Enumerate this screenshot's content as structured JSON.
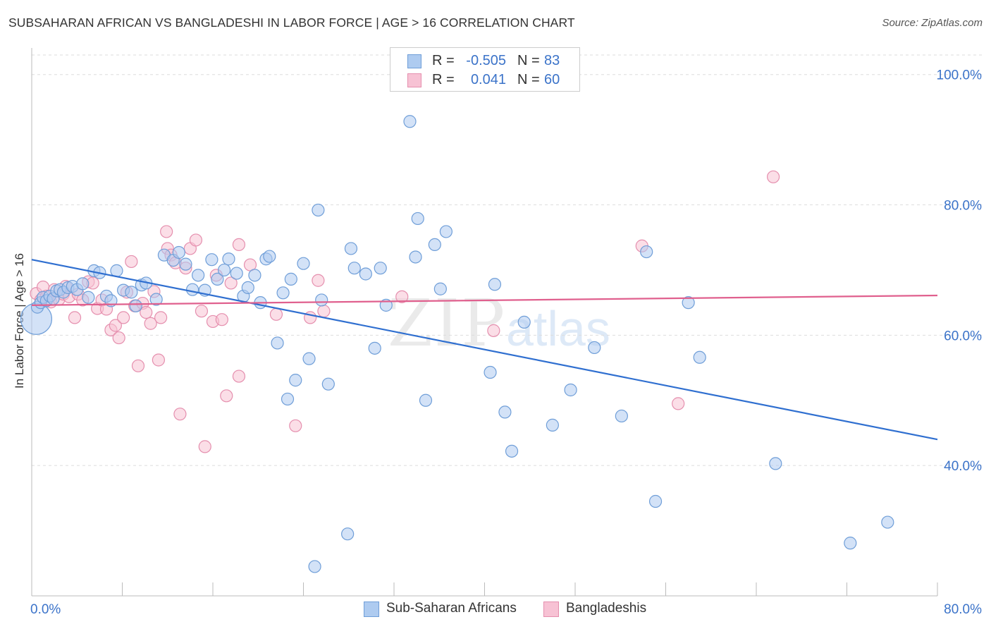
{
  "title": "SUBSAHARAN AFRICAN VS BANGLADESHI IN LABOR FORCE | AGE > 16 CORRELATION CHART",
  "source": "Source: ZipAtlas.com",
  "watermark": {
    "zip": "ZIP",
    "atlas": "atlas"
  },
  "colors": {
    "blue_fill": "#aecbf0",
    "blue_stroke": "#6f9ed8",
    "blue_line": "#2f6fd0",
    "pink_fill": "#f7c2d4",
    "pink_stroke": "#e58fae",
    "pink_line": "#e0608e",
    "axis_text": "#3b73c9",
    "grid": "#dddddd"
  },
  "legend": {
    "rows": [
      {
        "r_label": "R =",
        "r_value": "-0.505",
        "n_label": "N =",
        "n_value": "83"
      },
      {
        "r_label": "R =",
        "r_value": "0.041",
        "n_label": "N =",
        "n_value": "60"
      }
    ]
  },
  "bottom_legend": {
    "blue": "Sub-Saharan Africans",
    "pink": "Bangladeshis"
  },
  "chart_data": {
    "type": "scatter",
    "title": "SUBSAHARAN AFRICAN VS BANGLADESHI IN LABOR FORCE | AGE > 16 CORRELATION CHART",
    "xlabel": "",
    "ylabel": "In Labor Force | Age > 16",
    "xlim": [
      0,
      80
    ],
    "ylim": [
      20,
      103
    ],
    "x_tick_labels": [
      "0.0%",
      "80.0%"
    ],
    "y_ticks": [
      40,
      60,
      80,
      100
    ],
    "y_tick_labels": [
      "40.0%",
      "60.0%",
      "80.0%",
      "100.0%"
    ],
    "grid": true,
    "series": [
      {
        "name": "Sub-Saharan Africans",
        "color": "#aecbf0",
        "r": -0.505,
        "n": 83,
        "trend": {
          "x": [
            0,
            80
          ],
          "y": [
            71.6,
            44.0
          ]
        },
        "points": [
          [
            0.4,
            62.5
          ],
          [
            0.5,
            64.3
          ],
          [
            0.8,
            65.0
          ],
          [
            1.0,
            65.8
          ],
          [
            1.3,
            65.3
          ],
          [
            1.6,
            66.0
          ],
          [
            1.9,
            65.6
          ],
          [
            2.2,
            66.8
          ],
          [
            2.5,
            67.0
          ],
          [
            2.8,
            66.6
          ],
          [
            3.2,
            67.3
          ],
          [
            3.6,
            67.5
          ],
          [
            4.0,
            67.0
          ],
          [
            4.5,
            67.9
          ],
          [
            5.0,
            65.8
          ],
          [
            5.5,
            69.9
          ],
          [
            6.0,
            69.6
          ],
          [
            6.6,
            66.0
          ],
          [
            7.0,
            65.3
          ],
          [
            7.5,
            69.9
          ],
          [
            8.1,
            66.9
          ],
          [
            8.8,
            66.6
          ],
          [
            9.2,
            64.5
          ],
          [
            9.7,
            67.7
          ],
          [
            10.1,
            68.0
          ],
          [
            11.0,
            65.5
          ],
          [
            11.7,
            72.3
          ],
          [
            12.5,
            71.5
          ],
          [
            13.0,
            72.7
          ],
          [
            13.6,
            70.9
          ],
          [
            14.2,
            67.0
          ],
          [
            14.7,
            69.2
          ],
          [
            15.3,
            66.9
          ],
          [
            15.9,
            71.6
          ],
          [
            16.4,
            68.6
          ],
          [
            17.0,
            70.0
          ],
          [
            17.4,
            71.7
          ],
          [
            18.1,
            69.5
          ],
          [
            18.7,
            66.0
          ],
          [
            19.1,
            67.3
          ],
          [
            19.7,
            69.2
          ],
          [
            20.2,
            65.0
          ],
          [
            20.7,
            71.7
          ],
          [
            21.0,
            72.1
          ],
          [
            21.7,
            58.8
          ],
          [
            22.2,
            66.5
          ],
          [
            22.6,
            50.2
          ],
          [
            22.9,
            68.6
          ],
          [
            23.3,
            53.1
          ],
          [
            24.0,
            71.0
          ],
          [
            24.5,
            56.4
          ],
          [
            25.3,
            79.2
          ],
          [
            25.6,
            65.4
          ],
          [
            26.2,
            52.5
          ],
          [
            27.9,
            29.5
          ],
          [
            28.2,
            73.3
          ],
          [
            28.5,
            70.3
          ],
          [
            29.5,
            69.4
          ],
          [
            30.3,
            58.0
          ],
          [
            30.8,
            70.3
          ],
          [
            31.3,
            64.6
          ],
          [
            33.4,
            92.8
          ],
          [
            33.9,
            72.0
          ],
          [
            34.1,
            77.9
          ],
          [
            34.8,
            50.0
          ],
          [
            35.6,
            73.9
          ],
          [
            36.1,
            67.1
          ],
          [
            36.6,
            75.9
          ],
          [
            40.5,
            54.3
          ],
          [
            40.9,
            67.8
          ],
          [
            41.8,
            48.2
          ],
          [
            42.4,
            42.2
          ],
          [
            43.5,
            62.0
          ],
          [
            46.0,
            46.2
          ],
          [
            47.6,
            51.6
          ],
          [
            49.7,
            58.1
          ],
          [
            52.1,
            47.6
          ],
          [
            54.3,
            72.8
          ],
          [
            55.1,
            34.5
          ],
          [
            58.0,
            65.0
          ],
          [
            59.0,
            56.6
          ],
          [
            65.7,
            40.3
          ],
          [
            72.3,
            28.1
          ],
          [
            75.6,
            31.3
          ],
          [
            25.0,
            24.5
          ]
        ]
      },
      {
        "name": "Bangladeshis",
        "color": "#f7c2d4",
        "r": 0.041,
        "n": 60,
        "trend": {
          "x": [
            0,
            80
          ],
          "y": [
            64.6,
            66.1
          ]
        },
        "points": [
          [
            0.4,
            66.4
          ],
          [
            0.8,
            65.4
          ],
          [
            1.0,
            67.4
          ],
          [
            1.3,
            66.0
          ],
          [
            1.7,
            65.1
          ],
          [
            2.0,
            67.0
          ],
          [
            2.4,
            65.5
          ],
          [
            2.8,
            66.3
          ],
          [
            3.0,
            67.5
          ],
          [
            3.3,
            65.9
          ],
          [
            3.8,
            62.7
          ],
          [
            4.1,
            66.3
          ],
          [
            4.5,
            65.4
          ],
          [
            5.0,
            68.2
          ],
          [
            5.4,
            68.0
          ],
          [
            5.8,
            64.1
          ],
          [
            6.2,
            65.4
          ],
          [
            6.6,
            64.0
          ],
          [
            7.0,
            60.8
          ],
          [
            7.4,
            61.5
          ],
          [
            7.7,
            59.6
          ],
          [
            8.1,
            62.7
          ],
          [
            8.4,
            66.6
          ],
          [
            8.8,
            71.3
          ],
          [
            9.1,
            64.5
          ],
          [
            9.4,
            55.3
          ],
          [
            9.8,
            64.9
          ],
          [
            10.1,
            63.5
          ],
          [
            10.5,
            61.8
          ],
          [
            10.8,
            66.7
          ],
          [
            11.2,
            56.2
          ],
          [
            11.4,
            62.7
          ],
          [
            11.9,
            75.9
          ],
          [
            12.0,
            73.3
          ],
          [
            12.3,
            72.3
          ],
          [
            12.7,
            71.1
          ],
          [
            13.1,
            47.9
          ],
          [
            13.6,
            70.3
          ],
          [
            14.0,
            73.3
          ],
          [
            14.5,
            74.6
          ],
          [
            15.0,
            63.7
          ],
          [
            15.3,
            42.9
          ],
          [
            16.0,
            62.1
          ],
          [
            16.3,
            69.2
          ],
          [
            16.8,
            62.4
          ],
          [
            17.2,
            50.7
          ],
          [
            17.6,
            68.0
          ],
          [
            18.3,
            73.9
          ],
          [
            18.3,
            53.7
          ],
          [
            19.3,
            70.8
          ],
          [
            21.6,
            63.2
          ],
          [
            23.3,
            46.1
          ],
          [
            24.6,
            62.7
          ],
          [
            25.3,
            68.4
          ],
          [
            25.8,
            63.7
          ],
          [
            32.7,
            65.9
          ],
          [
            40.8,
            60.7
          ],
          [
            53.9,
            73.7
          ],
          [
            57.1,
            49.5
          ],
          [
            65.5,
            84.3
          ]
        ]
      }
    ]
  }
}
